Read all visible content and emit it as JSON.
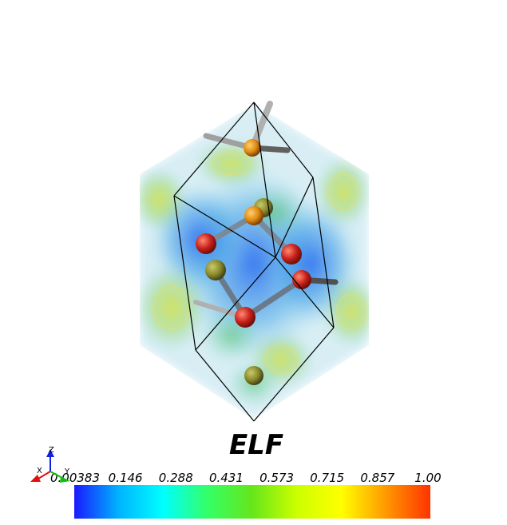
{
  "colorbar": {
    "title": "ELF",
    "ticks": [
      "0.00383",
      "0.146",
      "0.288",
      "0.431",
      "0.573",
      "0.715",
      "0.857",
      "1.00"
    ],
    "tick_values": [
      0.00383,
      0.146,
      0.288,
      0.431,
      0.573,
      0.715,
      0.857,
      1.0
    ],
    "range": [
      0.00383,
      1.0
    ],
    "colors": [
      "#1a1aff",
      "#00b4ff",
      "#00ffff",
      "#33ff66",
      "#66e61a",
      "#ccff00",
      "#ffff00",
      "#ff9900",
      "#ff3300"
    ]
  },
  "axes_triad": {
    "x": "X",
    "y": "Y",
    "z": "Z",
    "x_color": "#e01010",
    "y_color": "#10c010",
    "z_color": "#1020e0"
  },
  "atom_colors": {
    "red": "#c8201a",
    "orange": "#e08a10",
    "olive": "#8a8a2a"
  },
  "bond_color": "#8c8c8c"
}
